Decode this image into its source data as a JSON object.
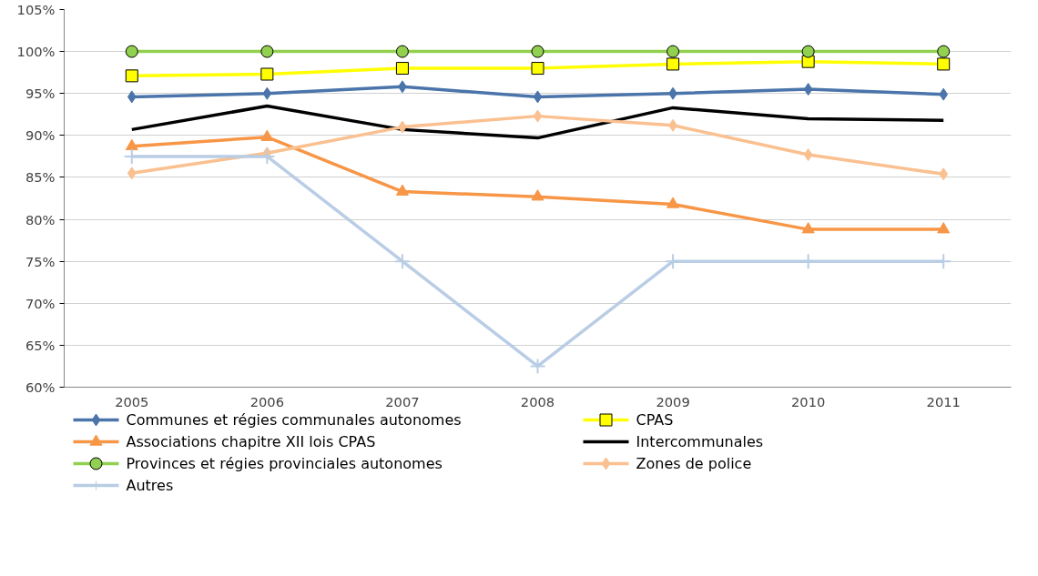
{
  "chart_data": {
    "type": "line",
    "categories": [
      "2005",
      "2006",
      "2007",
      "2008",
      "2009",
      "2010",
      "2011"
    ],
    "ylim": [
      60,
      105
    ],
    "yticks": [
      {
        "value": 60,
        "label": "60%"
      },
      {
        "value": 65,
        "label": "65%"
      },
      {
        "value": 70,
        "label": "70%"
      },
      {
        "value": 75,
        "label": "75%"
      },
      {
        "value": 80,
        "label": "80%"
      },
      {
        "value": 85,
        "label": "85%"
      },
      {
        "value": 90,
        "label": "90%"
      },
      {
        "value": 95,
        "label": "95%"
      },
      {
        "value": 100,
        "label": "100%"
      },
      {
        "value": 105,
        "label": "105%"
      }
    ],
    "grid": "y",
    "legend": "bottom",
    "series": [
      {
        "name": "Communes et régies communales autonomes",
        "color": "#4a74aa",
        "marker": "diamond",
        "values": [
          94.6,
          95.0,
          95.8,
          94.6,
          95.0,
          95.5,
          94.9
        ]
      },
      {
        "name": "CPAS",
        "color": "#ffff00",
        "marker": "square",
        "values": [
          97.1,
          97.3,
          98.0,
          98.0,
          98.5,
          98.8,
          98.5
        ]
      },
      {
        "name": "Associations chapitre XII lois CPAS",
        "color": "#f79646",
        "marker": "triangle",
        "values": [
          88.7,
          89.8,
          83.3,
          82.7,
          81.8,
          78.8,
          78.8
        ]
      },
      {
        "name": "Intercommunales",
        "color": "#000000",
        "marker": "none",
        "values": [
          90.7,
          93.5,
          90.7,
          89.7,
          93.3,
          92.0,
          91.8
        ]
      },
      {
        "name": "Provinces et régies provinciales autonomes",
        "color": "#92d050",
        "marker": "circle",
        "values": [
          100,
          100,
          100,
          100,
          100,
          100,
          100
        ]
      },
      {
        "name": "Zones de police",
        "color": "#fac090",
        "marker": "diamond",
        "values": [
          85.5,
          87.9,
          91.0,
          92.3,
          91.2,
          87.7,
          85.4
        ]
      },
      {
        "name": "Autres",
        "color": "#b9cde5",
        "marker": "cross",
        "values": [
          87.5,
          87.5,
          75,
          62.5,
          75,
          75,
          75
        ]
      }
    ]
  }
}
